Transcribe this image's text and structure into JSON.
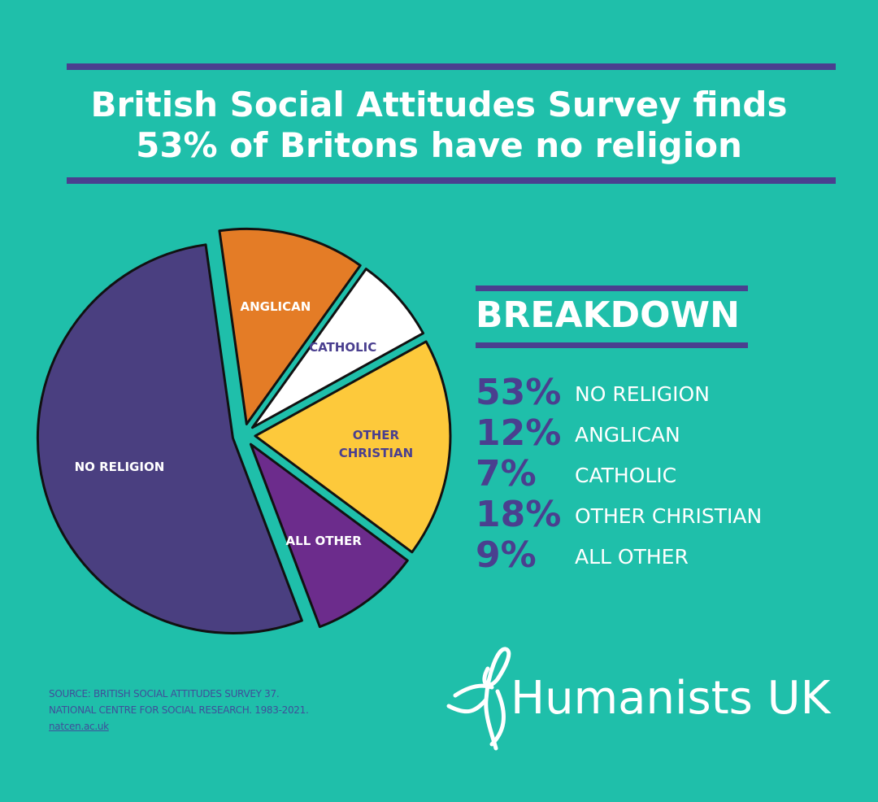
{
  "title_lines": [
    "British Social Attitudes Survey finds",
    "53% of Britons have no religion"
  ],
  "chart_data": {
    "type": "pie",
    "categories": [
      "NO RELIGION",
      "ANGLICAN",
      "CATHOLIC",
      "OTHER CHRISTIAN",
      "ALL OTHER"
    ],
    "values": [
      53,
      12,
      7,
      18,
      9
    ],
    "value_labels": [
      "53%",
      "12%",
      "7%",
      "18%",
      "9%"
    ],
    "colors": [
      "#4a3f80",
      "#e47c26",
      "#ffffff",
      "#fdc93b",
      "#6c2c8c"
    ]
  },
  "breakdown_title": "BREAKDOWN",
  "source_lines": [
    "SOURCE: BRITISH SOCIAL ATTITUDES SURVEY 37.",
    "NATIONAL CENTRE FOR SOCIAL RESEARCH. 1983-2021.",
    "natcen.ac.uk"
  ],
  "logo": "Humanists UK"
}
